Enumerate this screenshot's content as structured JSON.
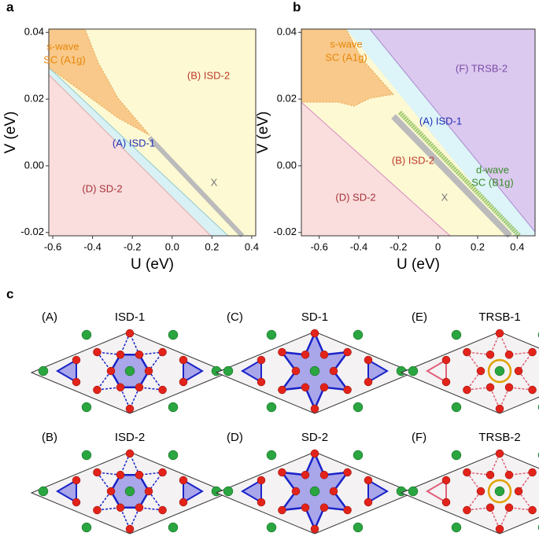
{
  "panels": [
    {
      "label": "a",
      "x_label": "U (eV)",
      "y_label": "V (eV)",
      "xlim": [
        -0.62,
        0.42
      ],
      "ylim": [
        -0.021,
        0.041
      ],
      "xticks": [
        -0.6,
        -0.4,
        -0.2,
        {
          "value": 0,
          "label": "0.0"
        },
        0.2,
        0.4
      ],
      "yticks": [
        -0.02,
        {
          "value": 0,
          "label": "0.00"
        },
        0.02,
        0.04
      ],
      "region_labels": [
        {
          "text": "s-wave",
          "color": "#e8860a"
        },
        {
          "text": "SC (A1g)",
          "color": "#e8860a"
        },
        {
          "text": "(B) ISD-2",
          "color": "#c0392b"
        },
        {
          "text": "(A) ISD-1",
          "color": "#1f2fb5"
        },
        {
          "text": "(D) SD-2",
          "color": "#a8323a"
        },
        {
          "text": "X",
          "color": "#777777"
        }
      ]
    },
    {
      "label": "b",
      "x_label": "U (eV)",
      "y_label": "V (eV)",
      "xlim": [
        -0.69,
        0.49
      ],
      "ylim": [
        -0.021,
        0.041
      ],
      "xticks": [
        -0.6,
        -0.4,
        -0.2,
        {
          "value": 0,
          "label": "0"
        },
        0.2,
        0.4
      ],
      "yticks": [
        -0.02,
        {
          "value": 0,
          "label": "0.00"
        },
        0.02,
        0.04
      ],
      "region_labels": [
        {
          "text": "s-wave",
          "color": "#e8860a"
        },
        {
          "text": "SC (A1g)",
          "color": "#e8860a"
        },
        {
          "text": "(F) TRSB-2",
          "color": "#7a4aa8"
        },
        {
          "text": "(A) ISD-1",
          "color": "#1f2fb5"
        },
        {
          "text": "(B) ISD-2",
          "color": "#c0392b"
        },
        {
          "text": "d-wave",
          "color": "#3b8a2a"
        },
        {
          "text": "SC (B1g)",
          "color": "#3b8a2a"
        },
        {
          "text": "(D) SD-2",
          "color": "#a8323a"
        },
        {
          "text": "X",
          "color": "#777777"
        }
      ]
    }
  ],
  "section_c": {
    "label": "c",
    "schematics": [
      {
        "tag": "(A)",
        "title": "ISD-1"
      },
      {
        "tag": "(C)",
        "title": "SD-1"
      },
      {
        "tag": "(E)",
        "title": "TRSB-1"
      },
      {
        "tag": "(B)",
        "title": "ISD-2"
      },
      {
        "tag": "(D)",
        "title": "SD-2"
      },
      {
        "tag": "(F)",
        "title": "TRSB-2"
      }
    ]
  }
}
